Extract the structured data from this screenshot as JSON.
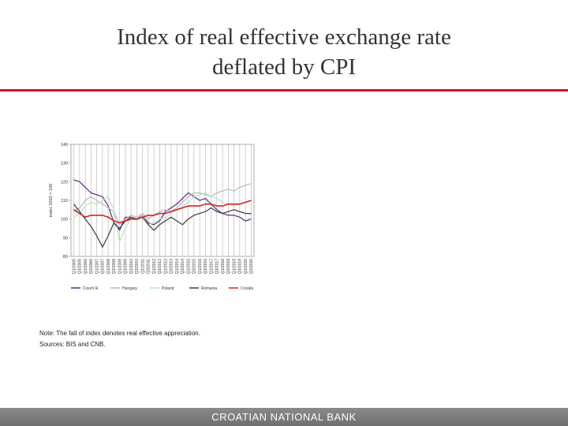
{
  "slide": {
    "title_line1": "Index of real effective exchange rate",
    "title_line2": "deflated by CPI",
    "note": "Note: The fall of index denotes real effective appreciation.",
    "sources": "Sources: BIS and CNB.",
    "footer": "CROATIAN NATIONAL BANK"
  },
  "colors": {
    "accent_rule": "#c8102e",
    "footer_bg": "#7d7d7d"
  },
  "chart_data": {
    "type": "line",
    "title": "",
    "xlabel": "",
    "ylabel": "index 2010 = 100",
    "ylim": [
      80,
      140
    ],
    "yticks": [
      80,
      90,
      100,
      110,
      120,
      130,
      140
    ],
    "grid": "vertical",
    "legend_position": "bottom",
    "categories": [
      "Q1/2005",
      "Q3/2005",
      "Q1/2006",
      "Q3/2006",
      "Q1/2007",
      "Q3/2007",
      "Q1/2008",
      "Q3/2008",
      "Q1/2009",
      "Q3/2009",
      "Q1/2010",
      "Q3/2010",
      "Q1/2011",
      "Q3/2011",
      "Q1/2012",
      "Q3/2012",
      "Q1/2013",
      "Q3/2013",
      "Q1/2014",
      "Q3/2014",
      "Q1/2015",
      "Q3/2015",
      "Q1/2016",
      "Q3/2016",
      "Q1/2017",
      "Q3/2017",
      "Q1/2018",
      "Q3/2018",
      "Q1/2019",
      "Q3/2019",
      "Q1/2020",
      "Q3/2020"
    ],
    "series": [
      {
        "name": "Czech R.",
        "color": "#5b2a86",
        "values": [
          121,
          120,
          117,
          114,
          113,
          112,
          107,
          98,
          94,
          101,
          101,
          100,
          102,
          98,
          97,
          99,
          104,
          106,
          108,
          111,
          114,
          112,
          110,
          111,
          108,
          105,
          103,
          102,
          102,
          101,
          99,
          100
        ]
      },
      {
        "name": "Hungary",
        "color": "#b8b8b8",
        "values": [
          104,
          106,
          110,
          112,
          110,
          108,
          106,
          104,
          97,
          100,
          102,
          101,
          103,
          100,
          102,
          104,
          105,
          104,
          106,
          109,
          112,
          114,
          114,
          113,
          112,
          114,
          115,
          116,
          115,
          117,
          118,
          119
        ]
      },
      {
        "name": "Poland",
        "color": "#b8e3c4",
        "values": [
          101,
          103,
          107,
          109,
          108,
          110,
          112,
          105,
          88,
          95,
          101,
          99,
          102,
          97,
          98,
          100,
          101,
          103,
          105,
          107,
          109,
          112,
          113,
          114,
          112,
          111,
          109,
          108,
          107,
          108,
          109,
          110
        ]
      },
      {
        "name": "Romania",
        "color": "#3a3a3a",
        "values": [
          108,
          104,
          100,
          96,
          91,
          85,
          91,
          98,
          95,
          99,
          101,
          100,
          101,
          97,
          94,
          97,
          99,
          101,
          99,
          97,
          100,
          102,
          103,
          104,
          106,
          104,
          103,
          104,
          105,
          104,
          103,
          103
        ]
      },
      {
        "name": "Croatia",
        "color": "#d42020",
        "values": [
          105,
          103,
          101,
          102,
          102,
          102,
          101,
          99,
          98,
          99,
          100,
          100,
          101,
          102,
          102,
          103,
          103,
          104,
          105,
          106,
          107,
          107,
          107,
          108,
          108,
          107,
          107,
          108,
          108,
          108,
          109,
          110
        ]
      }
    ]
  }
}
